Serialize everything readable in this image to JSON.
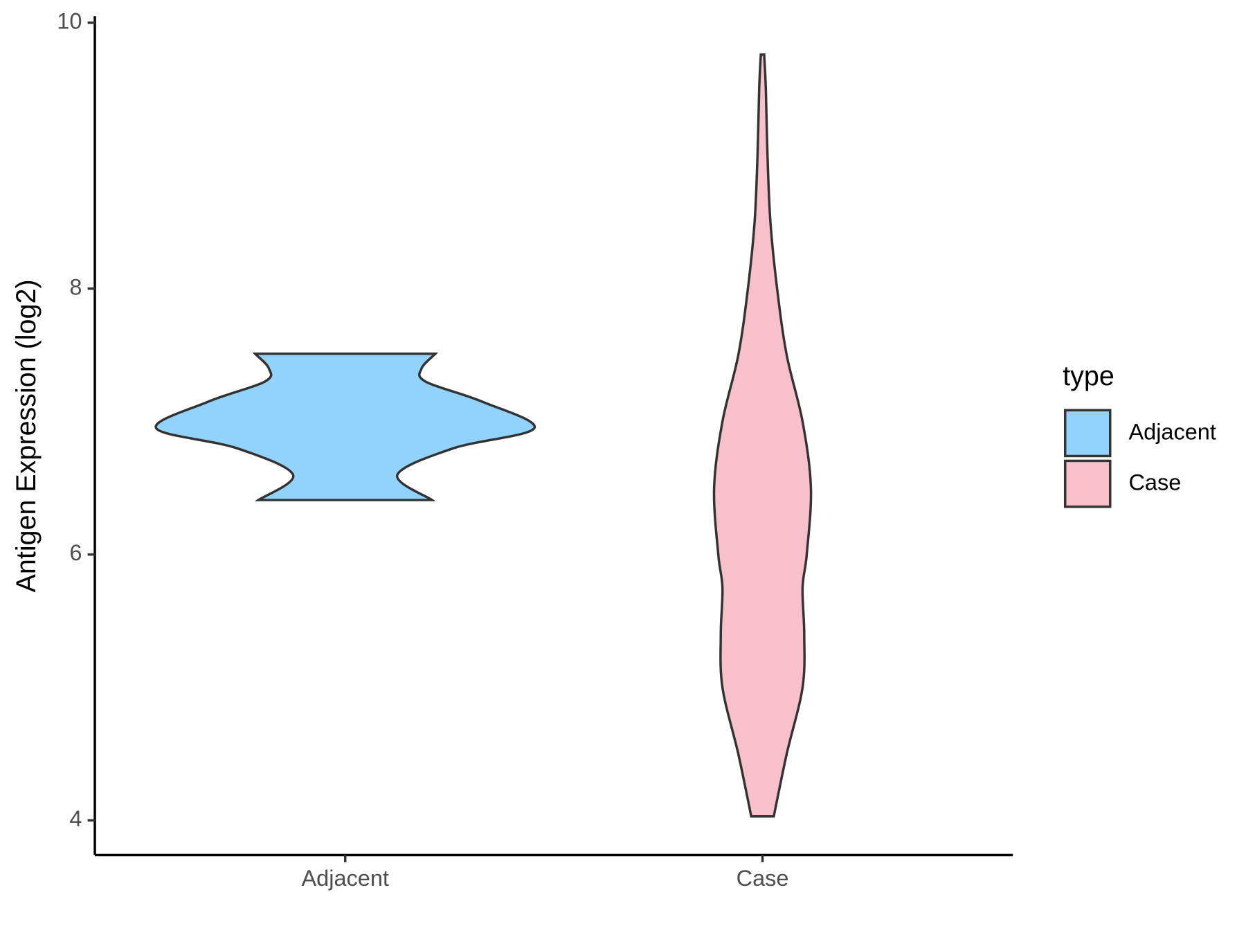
{
  "chart_data": {
    "type": "violin",
    "y_label": "Antigen Expression (log2)",
    "categories": [
      "Adjacent",
      "Case"
    ],
    "legend_title": "type",
    "series": [
      {
        "name": "Adjacent",
        "color": "#92d3fd",
        "y": [
          6.41,
          6.6,
          6.8,
          6.95,
          7.15,
          7.3,
          7.4,
          7.51
        ],
        "half_width": [
          0.208,
          0.125,
          0.26,
          0.453,
          0.328,
          0.193,
          0.183,
          0.216
        ]
      },
      {
        "name": "Case",
        "color": "#f7c0cb",
        "y": [
          4.03,
          4.5,
          5.0,
          5.4,
          5.75,
          6.0,
          6.5,
          7.0,
          7.5,
          8.0,
          8.5,
          9.0,
          9.5,
          9.76
        ],
        "half_width": [
          0.027,
          0.058,
          0.096,
          0.1,
          0.096,
          0.106,
          0.116,
          0.096,
          0.058,
          0.035,
          0.019,
          0.012,
          0.008,
          0.004
        ]
      }
    ],
    "ylim": [
      3.74,
      10.05
    ],
    "yticks": [
      4,
      6,
      8,
      10
    ],
    "grid": false
  }
}
